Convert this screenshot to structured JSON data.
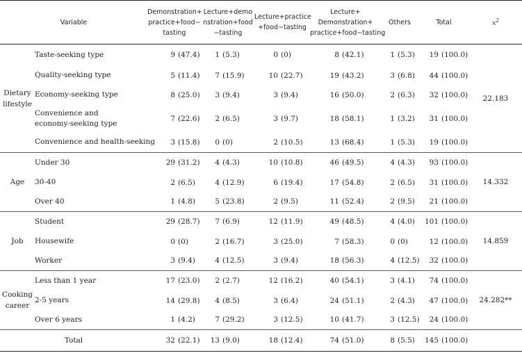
{
  "header": {
    "variable": "Variable",
    "col1_line1": "Demonstration+",
    "col1_line2": "practice+food−",
    "col1_line3": "tasting",
    "col2_line1": "Lecture+demo",
    "col2_line2": "nstration+food",
    "col2_line3": "−tasting",
    "col3_line1": "Lecture+practice",
    "col3_line2": "+food−tasting",
    "col4_line1": "Lecture+",
    "col4_line2": "Demonstration+",
    "col4_line3": "practice+food−tasting",
    "col5": "Others",
    "col6": "Total",
    "col7_base": "x",
    "col7_sup": "2"
  },
  "groups": [
    {
      "label_line1": "Dietary",
      "label_line2": "lifestyle",
      "chi": "22.183",
      "rows": [
        {
          "var1": "Taste-seeking  type",
          "var2": "",
          "c1n": "9",
          "c1p": "(47.4)",
          "c2n": "1",
          "c2p": "(5.3)",
          "c3n": "0",
          "c3p": "(0)",
          "c4n": "8",
          "c4p": "(42.1)",
          "c5n": "1",
          "c5p": "(5.3)",
          "c6n": "19",
          "c6p": "(100.0)"
        },
        {
          "var1": "Quality-seeking  type",
          "var2": "",
          "c1n": "5",
          "c1p": "(11.4)",
          "c2n": "7",
          "c2p": "(15.9)",
          "c3n": "10",
          "c3p": "(22.7)",
          "c4n": "19",
          "c4p": "(43.2)",
          "c5n": "3",
          "c5p": "(6.8)",
          "c6n": "44",
          "c6p": "(100.0)"
        },
        {
          "var1": "Economy-seeking  type",
          "var2": "",
          "c1n": "8",
          "c1p": "(25.0)",
          "c2n": "3",
          "c2p": "(9.4)",
          "c3n": "3",
          "c3p": "(9.4)",
          "c4n": "16",
          "c4p": "(50.0)",
          "c5n": "2",
          "c5p": "(6.3)",
          "c6n": "32",
          "c6p": "(100.0)"
        },
        {
          "var1": "Convenience  and",
          "var2": "economy-seeking  type",
          "c1n": "7",
          "c1p": "(22.6)",
          "c2n": "2",
          "c2p": "(6.5)",
          "c3n": "3",
          "c3p": "(9.7)",
          "c4n": "18",
          "c4p": "(58.1)",
          "c5n": "1",
          "c5p": "(3.2)",
          "c6n": "31",
          "c6p": "(100.0)"
        },
        {
          "var1": "Convenience  and  health-seeking",
          "var2": "",
          "c1n": "3",
          "c1p": "(15.8)",
          "c2n": "0",
          "c2p": "(0)",
          "c3n": "2",
          "c3p": "(10.5)",
          "c4n": "13",
          "c4p": "(68.4)",
          "c5n": "1",
          "c5p": "(5.3)",
          "c6n": "19",
          "c6p": "(100.0)"
        }
      ]
    },
    {
      "label_line1": "Age",
      "label_line2": "",
      "chi": "14.332",
      "rows": [
        {
          "var1": "Under  30",
          "var2": "",
          "c1n": "29",
          "c1p": "(31.2)",
          "c2n": "4",
          "c2p": "(4.3)",
          "c3n": "10",
          "c3p": "(10.8)",
          "c4n": "46",
          "c4p": "(49.5)",
          "c5n": "4",
          "c5p": "(4.3)",
          "c6n": "93",
          "c6p": "(100.0)"
        },
        {
          "var1": "30-40",
          "var2": "",
          "c1n": "2",
          "c1p": "(6.5)",
          "c2n": "4",
          "c2p": "(12.9)",
          "c3n": "6",
          "c3p": "(19.4)",
          "c4n": "17",
          "c4p": "(54.8)",
          "c5n": "2",
          "c5p": "(6.5)",
          "c6n": "31",
          "c6p": "(100.0)"
        },
        {
          "var1": "Over  40",
          "var2": "",
          "c1n": "1",
          "c1p": "(4.8)",
          "c2n": "5",
          "c2p": "(23.8)",
          "c3n": "2",
          "c3p": "(9.5)",
          "c4n": "11",
          "c4p": "(52.4)",
          "c5n": "2",
          "c5p": "(9.5)",
          "c6n": "21",
          "c6p": "(100.0)"
        }
      ]
    },
    {
      "label_line1": "Job",
      "label_line2": "",
      "chi": "14.859",
      "rows": [
        {
          "var1": "Student",
          "var2": "",
          "c1n": "29",
          "c1p": "(28.7)",
          "c2n": "7",
          "c2p": "(6.9)",
          "c3n": "12",
          "c3p": "(11.9)",
          "c4n": "49",
          "c4p": "(48.5)",
          "c5n": "4",
          "c5p": "(4.0)",
          "c6n": "101",
          "c6p": "(100.0)"
        },
        {
          "var1": "Housewife",
          "var2": "",
          "c1n": "0",
          "c1p": "(0)",
          "c2n": "2",
          "c2p": "(16.7)",
          "c3n": "3",
          "c3p": "(25.0)",
          "c4n": "7",
          "c4p": "(58.3)",
          "c5n": "0",
          "c5p": "(0)",
          "c6n": "12",
          "c6p": "(100.0)"
        },
        {
          "var1": "Worker",
          "var2": "",
          "c1n": "3",
          "c1p": "(9.4)",
          "c2n": "4",
          "c2p": "(12.5)",
          "c3n": "3",
          "c3p": "(9.4)",
          "c4n": "18",
          "c4p": "(56.3)",
          "c5n": "4",
          "c5p": "(12.5)",
          "c6n": "32",
          "c6p": "(100.0)"
        }
      ]
    },
    {
      "label_line1": "Cooking",
      "label_line2": "career",
      "chi": "24.282**",
      "rows": [
        {
          "var1": "Less  than  1  year",
          "var2": "",
          "c1n": "17",
          "c1p": "(23.0)",
          "c2n": "2",
          "c2p": "(2.7)",
          "c3n": "12",
          "c3p": "(16.2)",
          "c4n": "40",
          "c4p": "(54.1)",
          "c5n": "3",
          "c5p": "(4.1)",
          "c6n": "74",
          "c6p": "(100.0)"
        },
        {
          "var1": "2-5  years",
          "var2": "",
          "c1n": "14",
          "c1p": "(29.8)",
          "c2n": "4",
          "c2p": "(8.5)",
          "c3n": "3",
          "c3p": "(6.4)",
          "c4n": "24",
          "c4p": "(51.1)",
          "c5n": "2",
          "c5p": "(4.3)",
          "c6n": "47",
          "c6p": "(100.0)"
        },
        {
          "var1": "Over  6  years",
          "var2": "",
          "c1n": "1",
          "c1p": "(4.2)",
          "c2n": "7",
          "c2p": "(29.2)",
          "c3n": "3",
          "c3p": "(12.5)",
          "c4n": "10",
          "c4p": "(41.7)",
          "c5n": "3",
          "c5p": "(12.5)",
          "c6n": "24",
          "c6p": "(100.0)"
        }
      ]
    }
  ],
  "total": {
    "label": "Total",
    "c1n": "32",
    "c1p": "(22.1)",
    "c2n": "13",
    "c2p": "(9.0)",
    "c3n": "18",
    "c3p": "(12.4)",
    "c4n": "74",
    "c4p": "(51.0)",
    "c5n": "8",
    "c5p": "(5.5)",
    "c6n": "145",
    "c6p": "(100.0)"
  }
}
